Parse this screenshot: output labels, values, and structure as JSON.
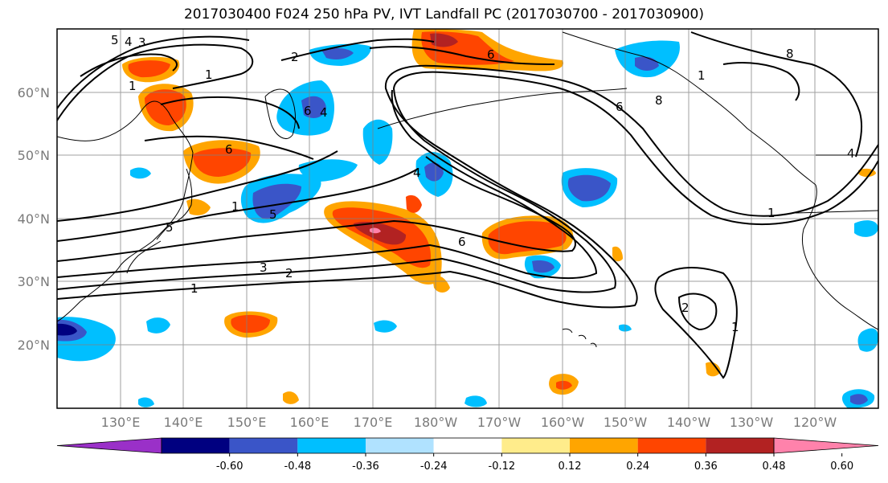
{
  "title": "2017030400 F024 250 hPa PV, IVT Landfall PC (2017030700 - 2017030900)",
  "lat_labels": [
    "60°N",
    "50°N",
    "40°N",
    "30°N",
    "20°N"
  ],
  "lon_labels": [
    "130°E",
    "140°E",
    "150°E",
    "160°E",
    "170°E",
    "180°W",
    "170°W",
    "160°W",
    "150°W",
    "140°W",
    "130°W",
    "120°W"
  ],
  "colorbar": {
    "levels": [
      "-0.60",
      "-0.48",
      "-0.36",
      "-0.24",
      "-0.12",
      "0.12",
      "0.24",
      "0.36",
      "0.48",
      "0.60"
    ],
    "colors": [
      "#9a30c8",
      "#000080",
      "#3a55c8",
      "#00bfff",
      "#b0e2ff",
      "#ffffff",
      "#ffec8b",
      "#ffa500",
      "#ff4500",
      "#b22222",
      "#ff82ab"
    ]
  },
  "contour_labels": [
    "5",
    "4",
    "3",
    "1",
    "2",
    "1",
    "6",
    "4",
    "6",
    "6",
    "1",
    "5",
    "4",
    "6",
    "1",
    "5",
    "3",
    "2",
    "1",
    "6",
    "8",
    "8",
    "4",
    "1",
    "2",
    "1"
  ]
}
